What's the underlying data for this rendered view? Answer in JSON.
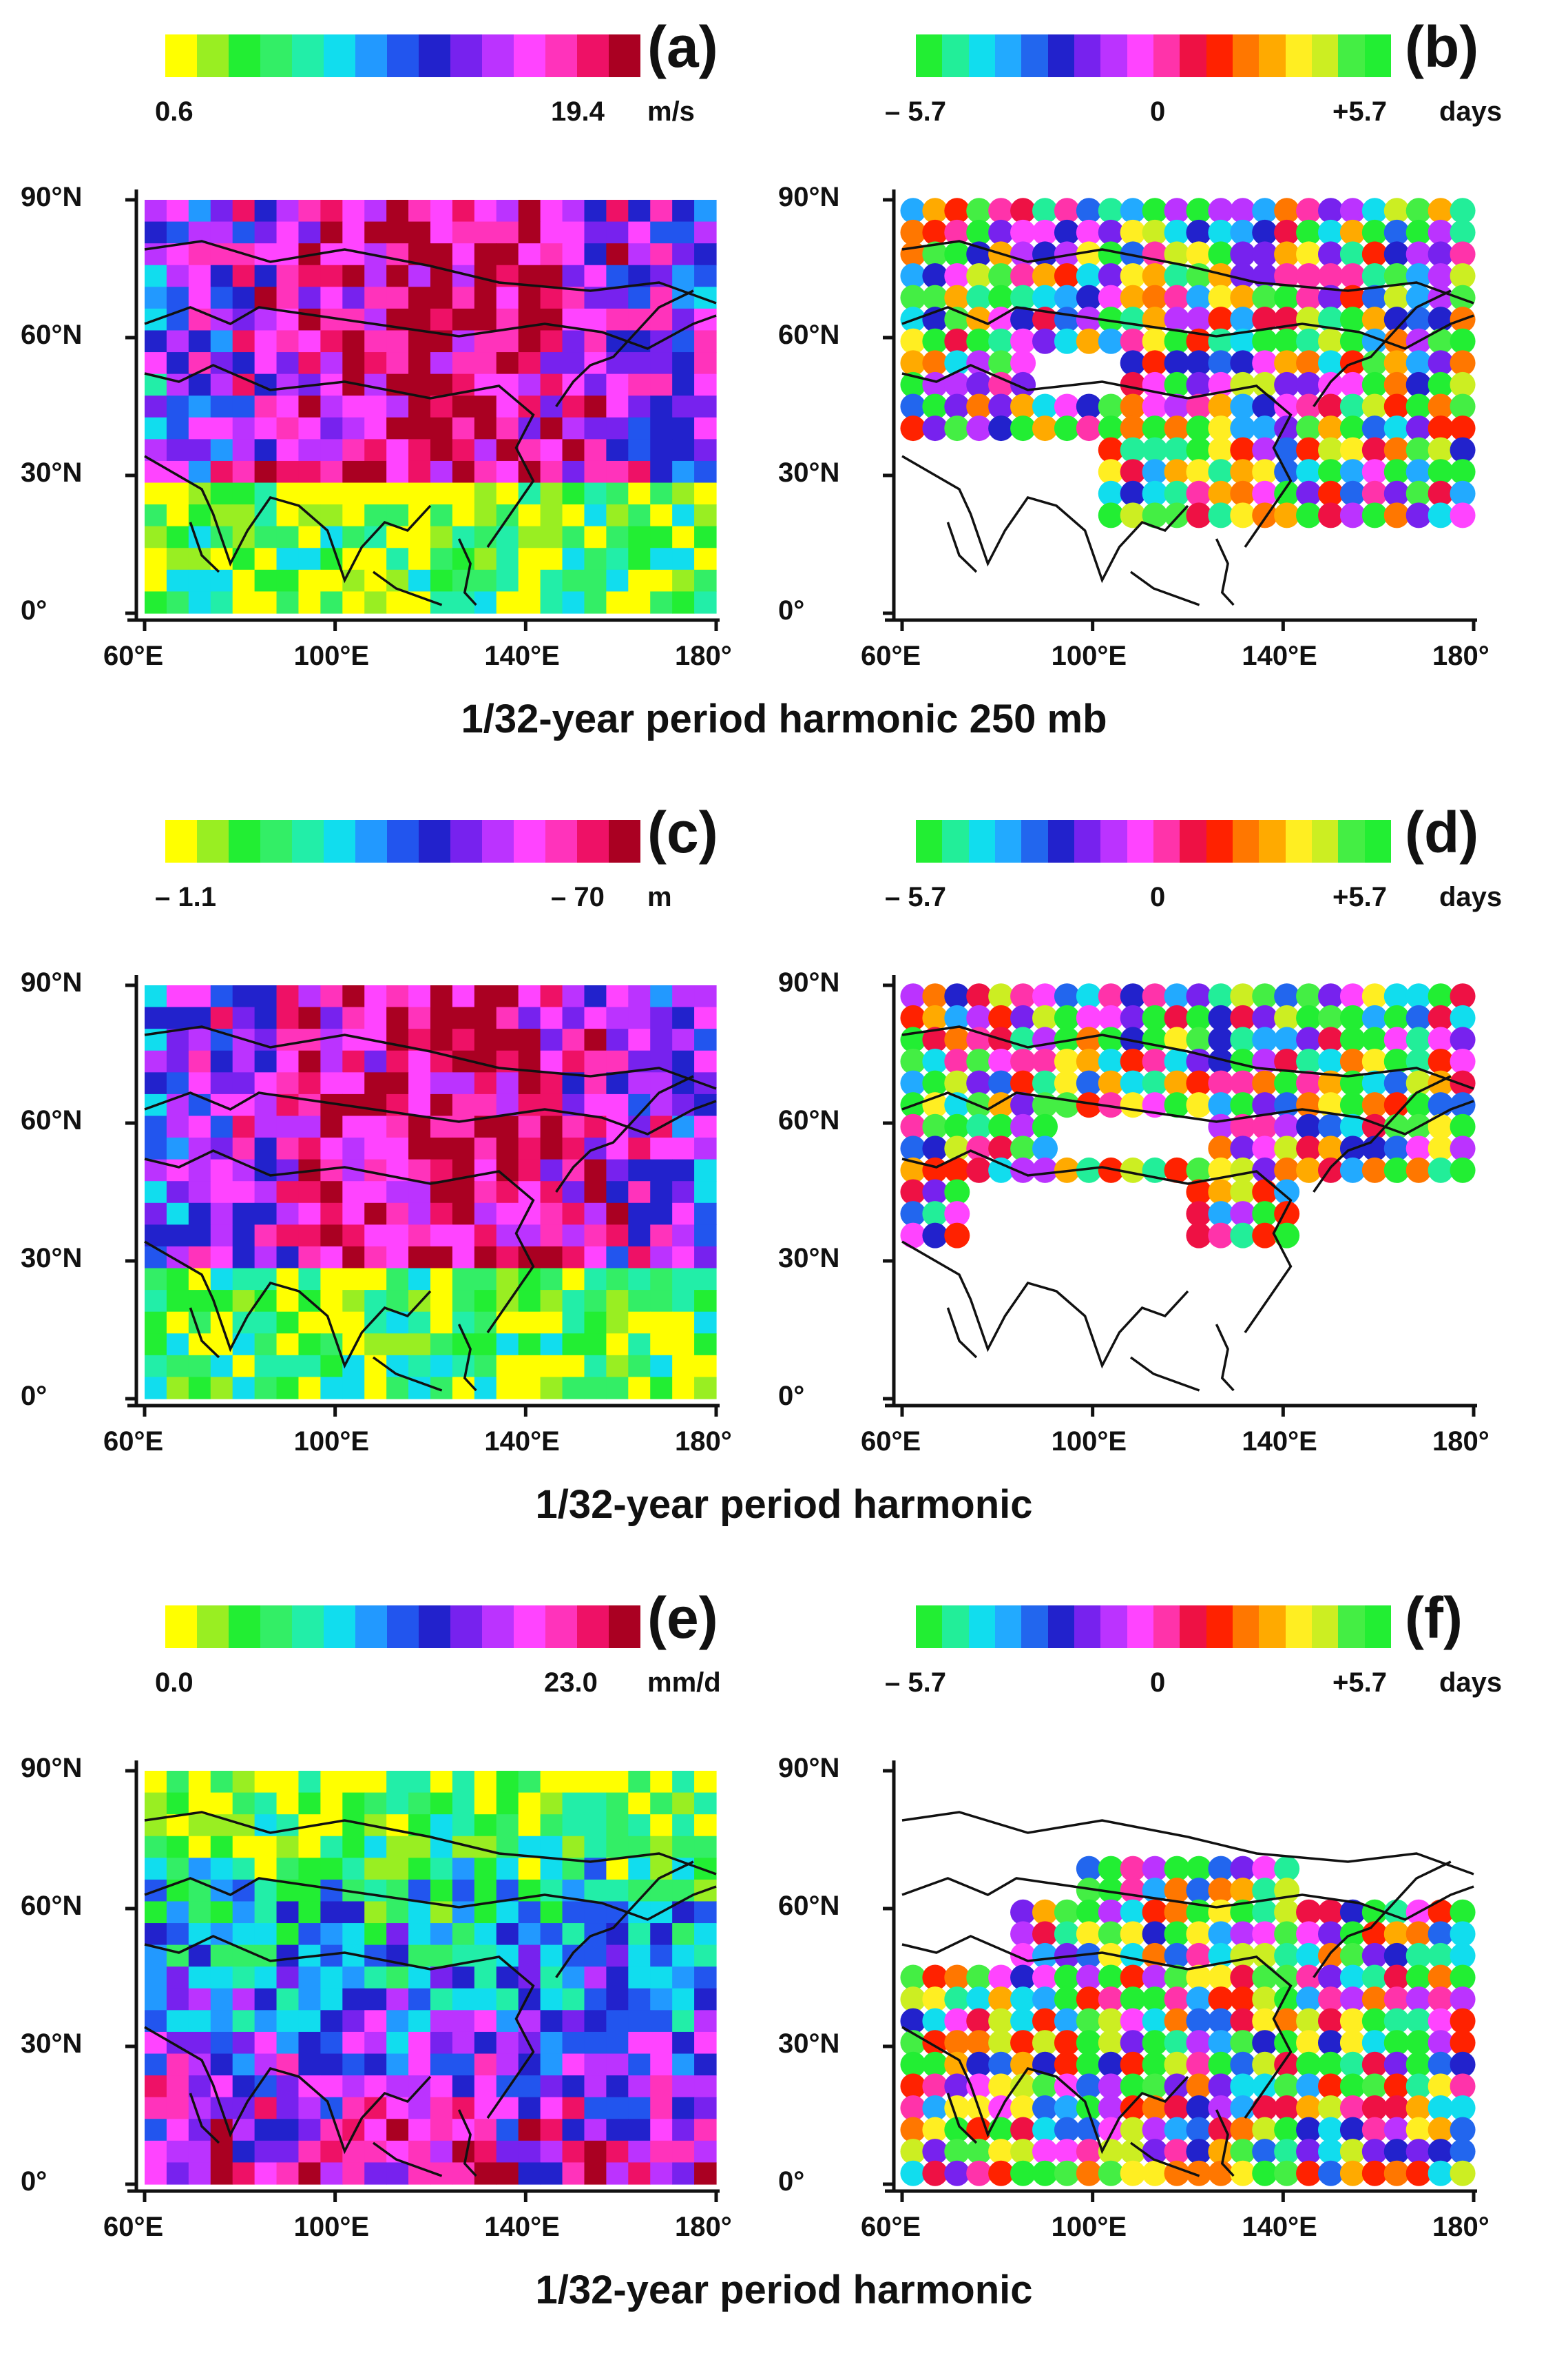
{
  "colors": {
    "amplitude_scale": [
      "#ffff00",
      "#99ee22",
      "#22ee33",
      "#33ee66",
      "#22eea8",
      "#11ddee",
      "#2299ff",
      "#2255ee",
      "#2222cc",
      "#7722ee",
      "#bb33ff",
      "#ff44ff",
      "#ff33bb",
      "#ee1166",
      "#aa0022"
    ],
    "phase_scale": [
      "#22ee33",
      "#22ee99",
      "#11ddee",
      "#22aaff",
      "#2266ee",
      "#2222cc",
      "#7722ee",
      "#bb33ff",
      "#ff44ff",
      "#ff33aa",
      "#ee1144",
      "#ff2200",
      "#ff7700",
      "#ffaa00",
      "#ffee22",
      "#ccee22",
      "#44ee44",
      "#22ee33"
    ]
  },
  "axes": {
    "lat_ticks": [
      "90°N",
      "60°N",
      "30°N",
      "0°"
    ],
    "lon_ticks": [
      "60°E",
      "100°E",
      "140°E",
      "180°"
    ]
  },
  "rows": [
    {
      "caption": "1/32-year period  harmonic  250 mb",
      "left": {
        "letter": "(a)",
        "min": "0.6",
        "max": "19.4",
        "unit": "m/s"
      },
      "right": {
        "letter": "(b)",
        "min": "– 5.7",
        "mid": "0",
        "max": "+5.7",
        "unit": "days"
      }
    },
    {
      "caption": "1/32-year period  harmonic",
      "left": {
        "letter": "(c)",
        "min": "– 1.1",
        "max": "– 70",
        "unit": "m"
      },
      "right": {
        "letter": "(d)",
        "min": "– 5.7",
        "mid": "0",
        "max": "+5.7",
        "unit": "days"
      }
    },
    {
      "caption": "1/32-year period  harmonic",
      "left": {
        "letter": "(e)",
        "min": "0.0",
        "max": "23.0",
        "unit": "mm/d"
      },
      "right": {
        "letter": "(f)",
        "min": "– 5.7",
        "mid": "0",
        "max": "+5.7",
        "unit": "days"
      }
    }
  ]
}
